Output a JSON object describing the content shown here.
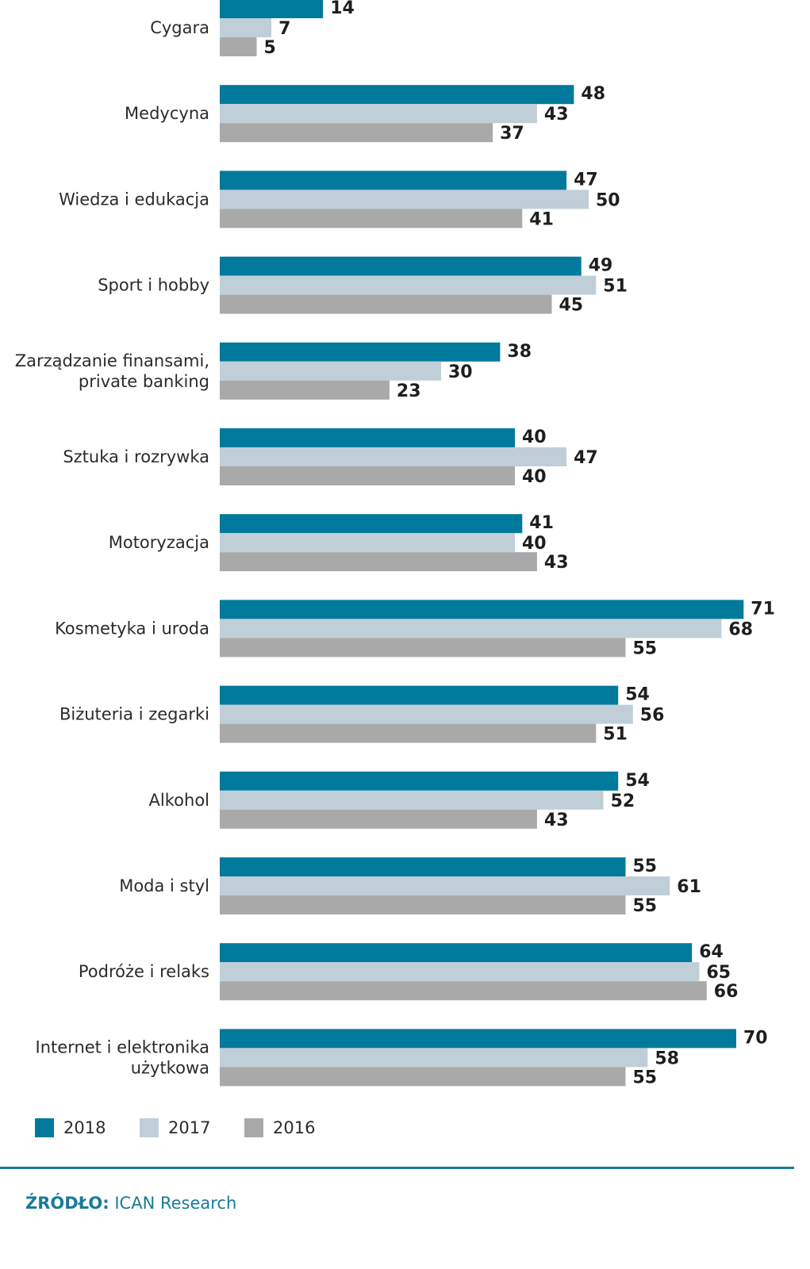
{
  "chart_data": {
    "type": "bar",
    "orientation": "horizontal",
    "title": "",
    "xlabel": "",
    "ylabel": "",
    "grid": false,
    "legend_position": "bottom-left",
    "categories": [
      "Cygara",
      "Medycyna",
      "Wiedza i edukacja",
      "Sport i hobby",
      "Zarządzanie finansami,\nprivate banking",
      "Sztuka i rozrywka",
      "Motoryzacja",
      "Kosmetyka i uroda",
      "Biżuteria i zegarki",
      "Alkohol",
      "Moda i styl",
      "Podróże i relaks",
      "Internet i elektronika\nużytkowa"
    ],
    "series": [
      {
        "name": "2018",
        "color": "#007a9c",
        "values": [
          14,
          48,
          47,
          49,
          38,
          40,
          41,
          71,
          54,
          54,
          55,
          64,
          70
        ]
      },
      {
        "name": "2017",
        "color": "#c0cfd7",
        "values": [
          7,
          43,
          50,
          51,
          30,
          47,
          40,
          68,
          56,
          52,
          61,
          65,
          58
        ]
      },
      {
        "name": "2016",
        "color": "#a9a9a9",
        "values": [
          5,
          37,
          41,
          45,
          23,
          40,
          43,
          55,
          51,
          43,
          55,
          66,
          55
        ]
      }
    ],
    "xlim": [
      0,
      75
    ]
  },
  "source": {
    "prefix": "ŹRÓDŁO:",
    "text": " ICAN Research"
  },
  "colors": {
    "accent": "#1a7a9a"
  }
}
